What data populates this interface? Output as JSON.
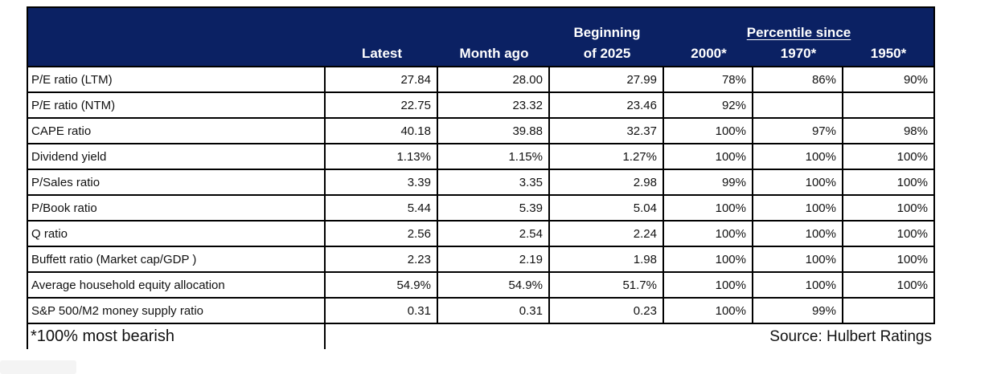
{
  "header": {
    "latest": "Latest",
    "month_ago": "Month ago",
    "beginning_line1": "Beginning",
    "beginning_line2": "of 2025",
    "percentile_group": "Percentile since",
    "p2000": "2000*",
    "p1970": "1970*",
    "p1950": "1950*"
  },
  "footer": {
    "note": "*100% most bearish",
    "source": "Source: Hulbert Ratings"
  },
  "colors": {
    "header_bg": "#0b2163",
    "header_text": "#ffffff",
    "border": "#000000"
  },
  "chart_data": {
    "type": "table",
    "title": "",
    "columns": [
      "",
      "Latest",
      "Month ago",
      "Beginning of 2025",
      "Percentile since 2000*",
      "Percentile since 1970*",
      "Percentile since 1950*"
    ],
    "column_group": {
      "label": "Percentile since",
      "spans": [
        "2000*",
        "1970*",
        "1950*"
      ]
    },
    "rows": [
      [
        "P/E ratio (LTM)",
        "27.84",
        "28.00",
        "27.99",
        "78%",
        "86%",
        "90%"
      ],
      [
        "P/E ratio (NTM)",
        "22.75",
        "23.32",
        "23.46",
        "92%",
        "",
        ""
      ],
      [
        "CAPE ratio",
        "40.18",
        "39.88",
        "32.37",
        "100%",
        "97%",
        "98%"
      ],
      [
        "Dividend yield",
        "1.13%",
        "1.15%",
        "1.27%",
        "100%",
        "100%",
        "100%"
      ],
      [
        "P/Sales ratio",
        "3.39",
        "3.35",
        "2.98",
        "99%",
        "100%",
        "100%"
      ],
      [
        "P/Book ratio",
        "5.44",
        "5.39",
        "5.04",
        "100%",
        "100%",
        "100%"
      ],
      [
        "Q ratio",
        "2.56",
        "2.54",
        "2.24",
        "100%",
        "100%",
        "100%"
      ],
      [
        "Buffett ratio (Market cap/GDP )",
        "2.23",
        "2.19",
        "1.98",
        "100%",
        "100%",
        "100%"
      ],
      [
        "Average household equity allocation",
        "54.9%",
        "54.9%",
        "51.7%",
        "100%",
        "100%",
        "100%"
      ],
      [
        "S&P 500/M2 money supply ratio",
        "0.31",
        "0.31",
        "0.23",
        "100%",
        "99%",
        ""
      ]
    ],
    "footnote": "*100% most bearish",
    "source": "Source: Hulbert Ratings"
  }
}
